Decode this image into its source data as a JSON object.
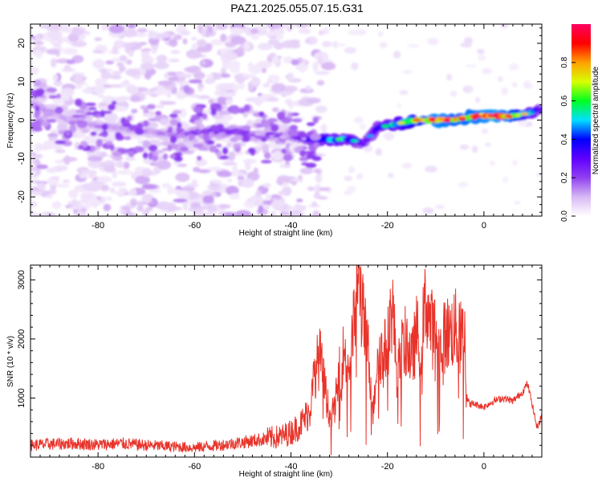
{
  "title": "PAZ1.2025.055.07.15.G31",
  "chart_data": [
    {
      "type": "heatmap",
      "title": "PAZ1.2025.055.07.15.G31",
      "xlabel": "Height of straight line (km)",
      "ylabel": "Frequency (Hz)",
      "xlim": [
        -94,
        12
      ],
      "ylim": [
        -25,
        25
      ],
      "xticks": [
        -80,
        -60,
        -40,
        -20,
        0
      ],
      "yticks": [
        -20,
        -10,
        0,
        10,
        20
      ],
      "colorbar": {
        "label": "Normalized spectral amplitude",
        "range": [
          0.0,
          1.0
        ],
        "ticks": [
          0.0,
          0.2,
          0.4,
          0.6,
          0.8
        ],
        "colors": [
          "#ffffff",
          "#d8b8f4",
          "#9040f0",
          "#6000ff",
          "#0000ff",
          "#00e0ff",
          "#00ff20",
          "#d8ff00",
          "#ffa000",
          "#ff0000",
          "#ff0060"
        ]
      },
      "ridge": {
        "x": [
          -93,
          -88,
          -82,
          -76,
          -70,
          -64,
          -58,
          -52,
          -46,
          -40,
          -36,
          -32,
          -28,
          -25,
          -22,
          -18,
          -14,
          -10,
          -6,
          -2,
          2,
          6,
          10,
          12
        ],
        "frequency": [
          4,
          1,
          -1,
          -2,
          -3,
          -4,
          -3,
          -3,
          -4,
          -4,
          -5,
          -5,
          -5,
          -6,
          -2,
          -1,
          0,
          0,
          0,
          1,
          1,
          1,
          2,
          3
        ],
        "amplitude": [
          0.15,
          0.12,
          0.12,
          0.13,
          0.13,
          0.16,
          0.22,
          0.24,
          0.18,
          0.2,
          0.35,
          0.5,
          0.45,
          0.3,
          0.35,
          0.55,
          0.7,
          0.85,
          0.8,
          0.82,
          0.85,
          0.8,
          0.5,
          0.3
        ]
      }
    },
    {
      "type": "line",
      "xlabel": "Height of straight line (km)",
      "ylabel": "SNR (10 * v/v)",
      "xlim": [
        -94,
        12
      ],
      "ylim": [
        0,
        3250
      ],
      "xticks": [
        -80,
        -60,
        -40,
        -20,
        0
      ],
      "yticks": [
        1000,
        2000,
        3000
      ],
      "color": "#e8332a",
      "x": [
        -94,
        -90,
        -85,
        -80,
        -75,
        -70,
        -65,
        -60,
        -55,
        -50,
        -46,
        -42,
        -40,
        -38,
        -36,
        -35,
        -34,
        -33,
        -32,
        -31,
        -30,
        -29,
        -28,
        -27,
        -26,
        -25,
        -24,
        -23,
        -22,
        -21,
        -20,
        -19,
        -18,
        -17,
        -16,
        -15,
        -14,
        -13,
        -12,
        -11,
        -10,
        -9,
        -8,
        -7,
        -6,
        -5,
        -4,
        -3.5,
        -3,
        -2,
        0,
        2,
        4,
        6,
        8,
        9,
        10,
        11,
        12
      ],
      "y": [
        200,
        220,
        230,
        210,
        230,
        200,
        180,
        160,
        200,
        250,
        300,
        350,
        420,
        550,
        800,
        1500,
        1700,
        1200,
        700,
        800,
        1400,
        1800,
        1500,
        2200,
        3150,
        2300,
        1800,
        700,
        1900,
        1700,
        1900,
        2600,
        1400,
        1800,
        2000,
        1600,
        2100,
        1900,
        2700,
        2200,
        2100,
        1800,
        2100,
        2100,
        2200,
        2000,
        2100,
        1000,
        900,
        900,
        850,
        950,
        1000,
        950,
        1100,
        1250,
        900,
        500,
        700
      ]
    }
  ]
}
